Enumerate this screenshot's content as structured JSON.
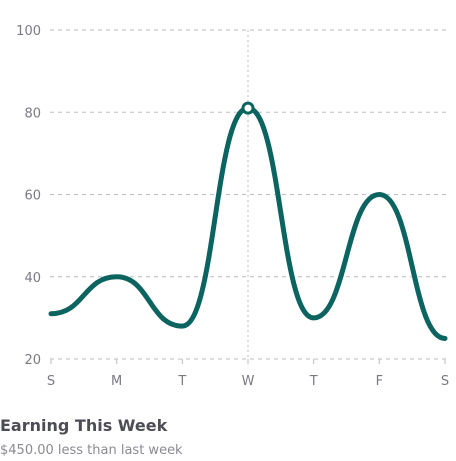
{
  "chart_data": {
    "type": "line",
    "categories": [
      "S",
      "M",
      "T",
      "W",
      "T",
      "F",
      "S"
    ],
    "series": [
      {
        "values": [
          31,
          40,
          28,
          81,
          30,
          60,
          25
        ]
      }
    ],
    "xlabel": "",
    "ylabel": "",
    "ylim": [
      20,
      100
    ],
    "yticks": [
      20,
      40,
      60,
      80,
      100
    ],
    "highlight_index": 3,
    "grid": "horizontal-dashed",
    "line_color": "#0b6460",
    "grid_color": "#bdbdc4",
    "tick_color": "#7a7a85"
  },
  "caption": {
    "title": "Earning This Week",
    "subtitle": "$450.00 less than last week"
  }
}
